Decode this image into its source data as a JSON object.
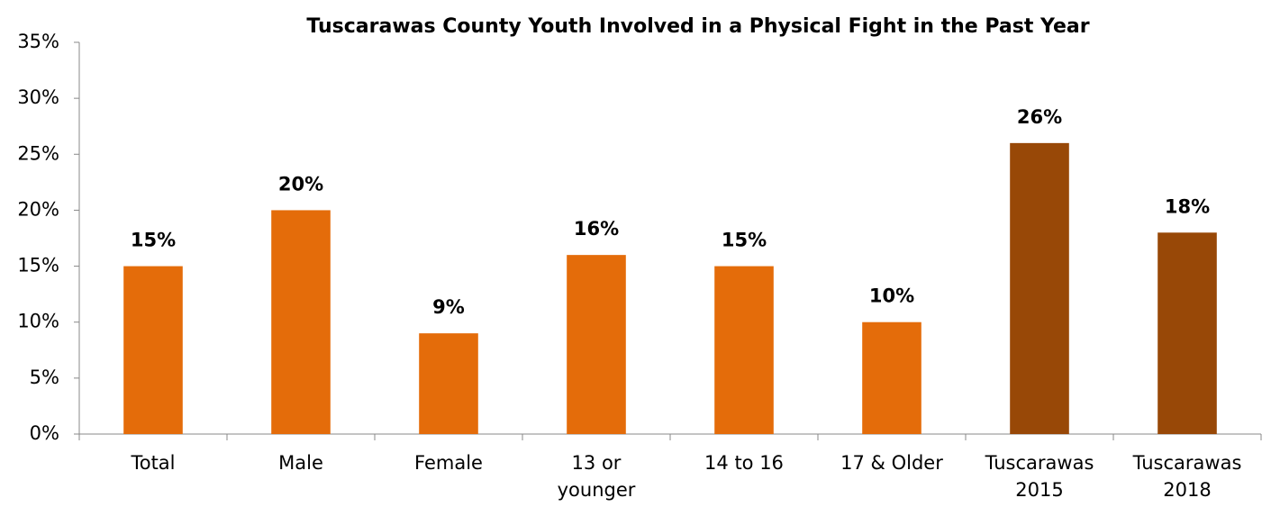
{
  "chart_data": {
    "type": "bar",
    "title": "Tuscarawas County Youth Involved in a Physical Fight in the Past Year",
    "categories": [
      "Total",
      "Male",
      "Female",
      "13 or\nyounger",
      "14 to 16",
      "17 & Older",
      "Tuscarawas\n2015",
      "Tuscarawas\n2018"
    ],
    "values": [
      15,
      20,
      9,
      16,
      15,
      10,
      26,
      18
    ],
    "value_labels": [
      "15%",
      "20%",
      "9%",
      "16%",
      "15%",
      "10%",
      "26%",
      "18%"
    ],
    "colors": [
      "#e46c0a",
      "#e46c0a",
      "#e46c0a",
      "#e46c0a",
      "#e46c0a",
      "#e46c0a",
      "#984807",
      "#984807"
    ],
    "ylim": [
      0,
      35
    ],
    "yticks": [
      {
        "value": 0,
        "label": "0%"
      },
      {
        "value": 5,
        "label": "5%"
      },
      {
        "value": 10,
        "label": "10%"
      },
      {
        "value": 15,
        "label": "15%"
      },
      {
        "value": 20,
        "label": "20%"
      },
      {
        "value": 25,
        "label": "25%"
      },
      {
        "value": 30,
        "label": "30%"
      },
      {
        "value": 35,
        "label": "35%"
      }
    ],
    "grid": false
  }
}
